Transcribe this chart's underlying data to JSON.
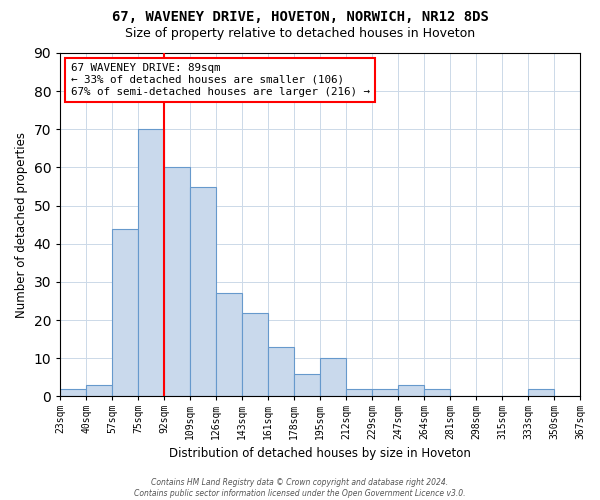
{
  "title1": "67, WAVENEY DRIVE, HOVETON, NORWICH, NR12 8DS",
  "title2": "Size of property relative to detached houses in Hoveton",
  "xlabel": "Distribution of detached houses by size in Hoveton",
  "ylabel": "Number of detached properties",
  "bins": [
    "23sqm",
    "40sqm",
    "57sqm",
    "75sqm",
    "92sqm",
    "109sqm",
    "126sqm",
    "143sqm",
    "161sqm",
    "178sqm",
    "195sqm",
    "212sqm",
    "229sqm",
    "247sqm",
    "264sqm",
    "281sqm",
    "298sqm",
    "315sqm",
    "333sqm",
    "350sqm",
    "367sqm"
  ],
  "values": [
    2,
    3,
    44,
    70,
    60,
    55,
    27,
    22,
    13,
    6,
    10,
    2,
    2,
    3,
    2,
    0,
    0,
    0,
    2,
    0
  ],
  "bar_color": "#c9d9ec",
  "bar_edge_color": "#6699cc",
  "redline_x": 4,
  "annotation_text": "67 WAVENEY DRIVE: 89sqm\n← 33% of detached houses are smaller (106)\n67% of semi-detached houses are larger (216) →",
  "ylim": [
    0,
    90
  ],
  "yticks": [
    0,
    10,
    20,
    30,
    40,
    50,
    60,
    70,
    80,
    90
  ],
  "footer_line1": "Contains HM Land Registry data © Crown copyright and database right 2024.",
  "footer_line2": "Contains public sector information licensed under the Open Government Licence v3.0.",
  "bg_color": "white",
  "grid_color": "#ccd9e8"
}
